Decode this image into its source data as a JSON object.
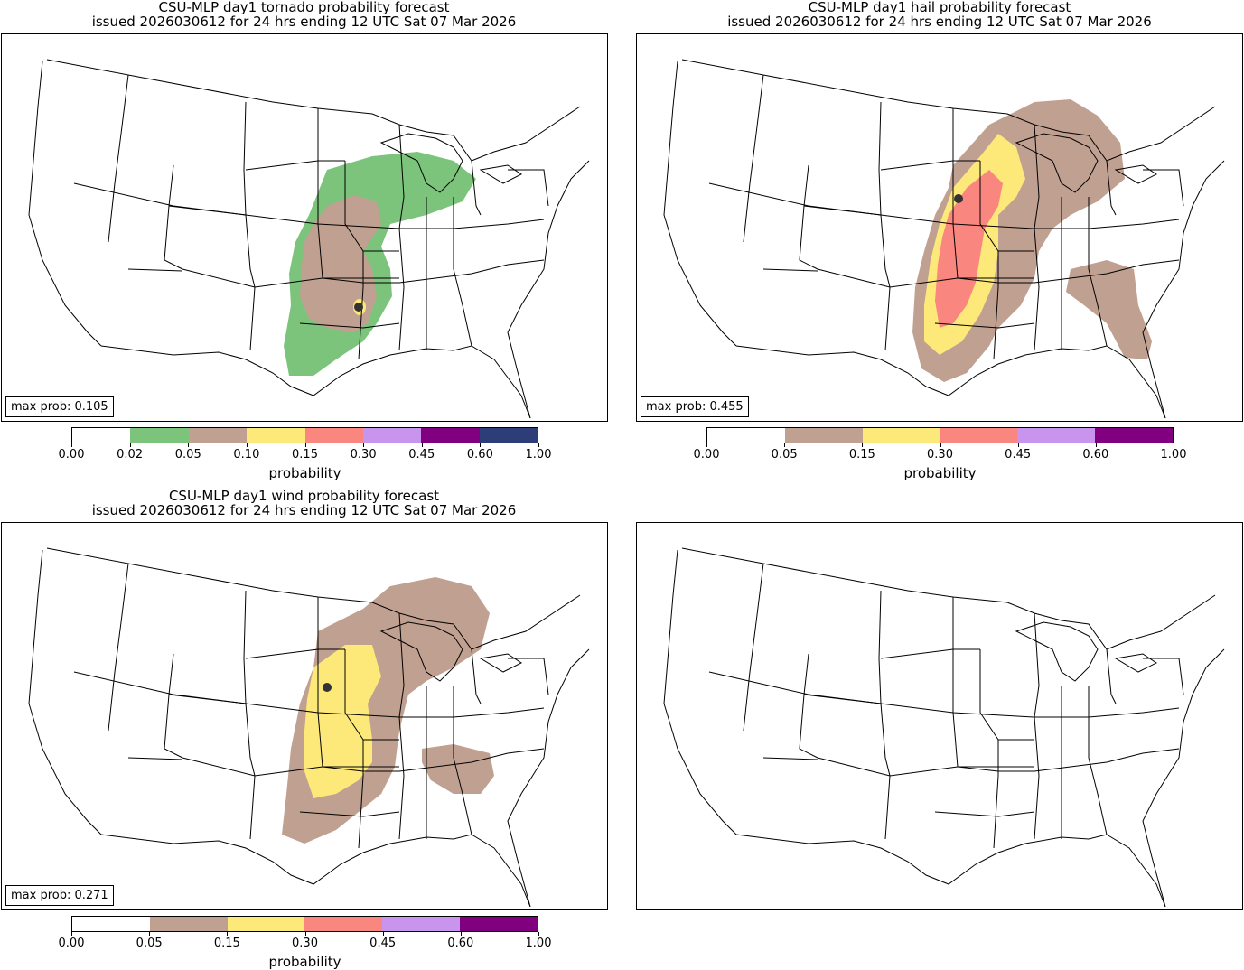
{
  "panels": {
    "tornado": {
      "title_line1": "CSU-MLP day1 tornado probability forecast",
      "title_line2": "issued 2026030612 for 24 hrs ending 12 UTC Sat 07 Mar 2026",
      "max_prob": "max prob: 0.105"
    },
    "hail": {
      "title_line1": "CSU-MLP day1 hail probability forecast",
      "title_line2": "issued 2026030612 for 24 hrs ending 12 UTC Sat 07 Mar 2026",
      "max_prob": "max prob: 0.455"
    },
    "wind": {
      "title_line1": "CSU-MLP day1 wind probability forecast",
      "title_line2": "issued 2026030612 for 24 hrs ending 12 UTC Sat 07 Mar 2026",
      "max_prob": "max prob: 0.271"
    }
  },
  "colorbars": {
    "tornado": {
      "label": "probability",
      "ticks": [
        "0.00",
        "0.02",
        "0.05",
        "0.10",
        "0.15",
        "0.30",
        "0.45",
        "0.60",
        "1.00"
      ],
      "colors": [
        "#ffffff",
        "#7cc47b",
        "#c0a090",
        "#fde87a",
        "#fa8680",
        "#c994ee",
        "#800080",
        "#2d3d78"
      ]
    },
    "hail": {
      "label": "probability",
      "ticks": [
        "0.00",
        "0.05",
        "0.15",
        "0.30",
        "0.45",
        "0.60",
        "1.00"
      ],
      "colors": [
        "#ffffff",
        "#c0a090",
        "#fde87a",
        "#fa8680",
        "#c994ee",
        "#800080"
      ]
    },
    "wind": {
      "label": "probability",
      "ticks": [
        "0.00",
        "0.05",
        "0.15",
        "0.30",
        "0.45",
        "0.60",
        "1.00"
      ],
      "colors": [
        "#ffffff",
        "#c0a090",
        "#fde87a",
        "#fa8680",
        "#c994ee",
        "#800080"
      ]
    }
  }
}
